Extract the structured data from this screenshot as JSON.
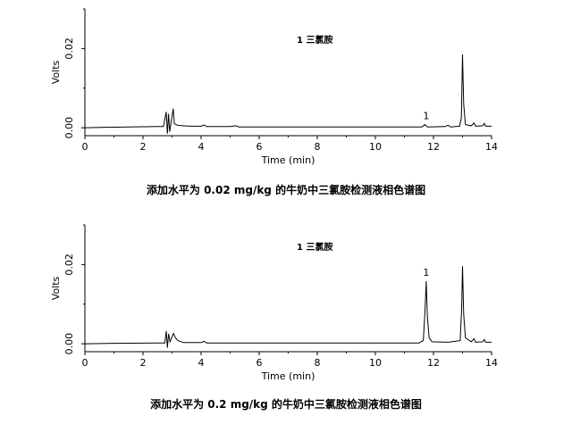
{
  "chart_data": [
    {
      "type": "line",
      "caption": "添加水平为 0.02 mg/kg 的牛奶中三氯胺检测液相色谱图",
      "xlabel": "Time (min)",
      "ylabel": "Volts",
      "xlim": [
        0,
        14
      ],
      "ylim": [
        -0.002,
        0.03
      ],
      "xticks": [
        "0",
        "2",
        "4",
        "6",
        "8",
        "10",
        "12",
        "14"
      ],
      "yticks": [
        "0.00",
        "0.02"
      ],
      "legend": "1  三氯胺",
      "peak_label": "1",
      "peak_label_x": 11.75,
      "series": [
        {
          "points": [
            [
              0,
              0
            ],
            [
              0.7,
              0.0001
            ],
            [
              1.5,
              0.0002
            ],
            [
              2.5,
              0.0003
            ],
            [
              2.7,
              0.0003
            ],
            [
              2.8,
              0.004
            ],
            [
              2.84,
              -0.0015
            ],
            [
              2.88,
              0.0035
            ],
            [
              2.92,
              -0.001
            ],
            [
              2.96,
              0.001
            ],
            [
              3.0,
              0.003
            ],
            [
              3.04,
              0.0048
            ],
            [
              3.08,
              0.001
            ],
            [
              3.2,
              0.0006
            ],
            [
              3.6,
              0.0004
            ],
            [
              4.0,
              0.0004
            ],
            [
              4.1,
              0.0007
            ],
            [
              4.2,
              0.0003
            ],
            [
              5.0,
              0.0003
            ],
            [
              5.2,
              0.0005
            ],
            [
              5.3,
              0.0002
            ],
            [
              7.0,
              0.0002
            ],
            [
              8.0,
              0.0002
            ],
            [
              9.5,
              0.0002
            ],
            [
              10.5,
              0.0002
            ],
            [
              11.6,
              0.0002
            ],
            [
              11.7,
              0.0008
            ],
            [
              11.8,
              0.0002
            ],
            [
              12.4,
              0.0003
            ],
            [
              12.5,
              0.0006
            ],
            [
              12.6,
              0.0002
            ],
            [
              12.9,
              0.0004
            ],
            [
              12.96,
              0.0025
            ],
            [
              13.0,
              0.0185
            ],
            [
              13.04,
              0.006
            ],
            [
              13.1,
              0.0008
            ],
            [
              13.3,
              0.0005
            ],
            [
              13.4,
              0.0012
            ],
            [
              13.45,
              0.0004
            ],
            [
              13.7,
              0.0005
            ],
            [
              13.75,
              0.0011
            ],
            [
              13.8,
              0.0004
            ],
            [
              14.0,
              0.0004
            ]
          ]
        }
      ]
    },
    {
      "type": "line",
      "caption": "添加水平为 0.2 mg/kg 的牛奶中三氯胺检测液相色谱图",
      "xlabel": "Time (min)",
      "ylabel": "Volts",
      "xlim": [
        0,
        14
      ],
      "ylim": [
        -0.002,
        0.03
      ],
      "xticks": [
        "0",
        "2",
        "4",
        "6",
        "8",
        "10",
        "12",
        "14"
      ],
      "yticks": [
        "0.00",
        "0.02"
      ],
      "legend": "1  三氯胺",
      "peak_label": "1",
      "peak_label_x": 11.75,
      "series": [
        {
          "points": [
            [
              0,
              0
            ],
            [
              1.0,
              0.0001
            ],
            [
              2.5,
              0.0002
            ],
            [
              2.75,
              0.0002
            ],
            [
              2.8,
              0.0032
            ],
            [
              2.84,
              -0.001
            ],
            [
              2.88,
              0.0025
            ],
            [
              2.93,
              0.0005
            ],
            [
              3.0,
              0.0018
            ],
            [
              3.05,
              0.0026
            ],
            [
              3.12,
              0.0015
            ],
            [
              3.2,
              0.0008
            ],
            [
              3.4,
              0.0003
            ],
            [
              4.0,
              0.0003
            ],
            [
              4.1,
              0.0006
            ],
            [
              4.2,
              0.0002
            ],
            [
              6.0,
              0.0002
            ],
            [
              8.0,
              0.0002
            ],
            [
              10.0,
              0.0002
            ],
            [
              11.5,
              0.0002
            ],
            [
              11.65,
              0.0008
            ],
            [
              11.71,
              0.0085
            ],
            [
              11.75,
              0.0158
            ],
            [
              11.79,
              0.007
            ],
            [
              11.85,
              0.0015
            ],
            [
              11.95,
              0.0005
            ],
            [
              12.5,
              0.0004
            ],
            [
              12.92,
              0.0008
            ],
            [
              12.97,
              0.009
            ],
            [
              13.0,
              0.0196
            ],
            [
              13.04,
              0.0075
            ],
            [
              13.1,
              0.0015
            ],
            [
              13.3,
              0.0005
            ],
            [
              13.4,
              0.0013
            ],
            [
              13.45,
              0.0004
            ],
            [
              13.7,
              0.0005
            ],
            [
              13.75,
              0.0011
            ],
            [
              13.8,
              0.0004
            ],
            [
              14.0,
              0.0004
            ]
          ]
        }
      ]
    }
  ]
}
